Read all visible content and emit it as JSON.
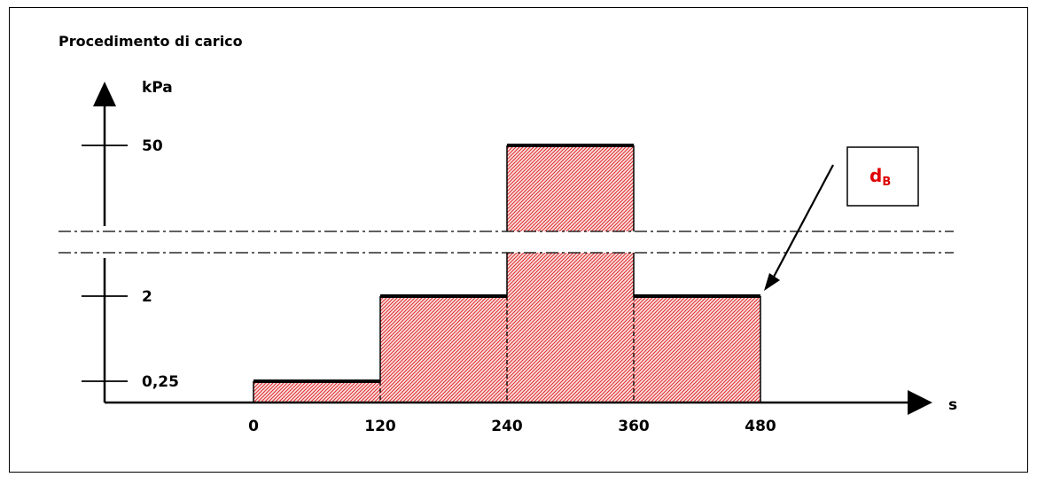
{
  "chart_data": {
    "type": "bar",
    "title": "Procedimento di carico",
    "ylabel": "kPa",
    "xlabel": "s",
    "x_ticks": [
      "0",
      "120",
      "240",
      "360",
      "480"
    ],
    "y_ticks": [
      {
        "label": "0,25",
        "value": 0.25
      },
      {
        "label": "2",
        "value": 2
      },
      {
        "label": "50",
        "value": 50
      }
    ],
    "steps": [
      {
        "from": 0,
        "to": 120,
        "value": 0.25
      },
      {
        "from": 120,
        "to": 240,
        "value": 2
      },
      {
        "from": 240,
        "to": 360,
        "value": 50
      },
      {
        "from": 360,
        "to": 480,
        "value": 2
      }
    ],
    "axis_break": true,
    "annotation": {
      "text": "d",
      "subscript": "B",
      "points_to_time": 480
    },
    "fill_color": "#e03030",
    "annotation_color": "#e00000"
  }
}
